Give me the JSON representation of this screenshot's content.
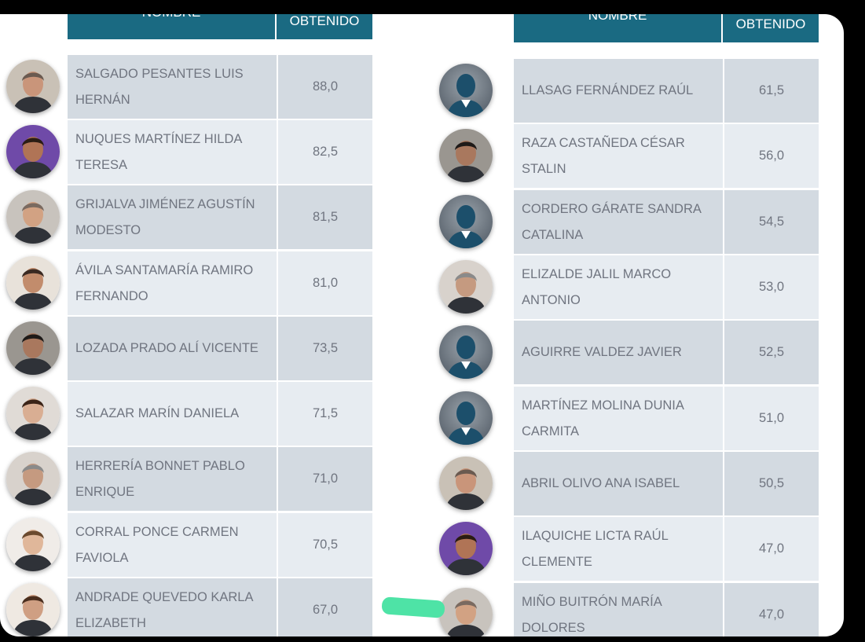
{
  "headers": {
    "name": "NOMBRE",
    "score": "OBTENIDO"
  },
  "left": [
    {
      "name": "SALGADO PESANTES LUIS HERNÁN",
      "score": "88,0",
      "avatar": "photo"
    },
    {
      "name": "NUQUES MARTÍNEZ HILDA TERESA",
      "score": "82,5",
      "avatar": "photo"
    },
    {
      "name": "GRIJALVA JIMÉNEZ AGUSTÍN MODESTO",
      "score": "81,5",
      "avatar": "photo"
    },
    {
      "name": "ÁVILA SANTAMARÍA RAMIRO FERNANDO",
      "score": "81,0",
      "avatar": "photo"
    },
    {
      "name": "LOZADA PRADO ALÍ VICENTE",
      "score": "73,5",
      "avatar": "photo"
    },
    {
      "name": "SALAZAR MARÍN DANIELA",
      "score": "71,5",
      "avatar": "photo"
    },
    {
      "name": "HERRERÍA BONNET PABLO ENRIQUE",
      "score": "71,0",
      "avatar": "photo"
    },
    {
      "name": "CORRAL PONCE CARMEN FAVIOLA",
      "score": "70,5",
      "avatar": "photo"
    },
    {
      "name": "ANDRADE QUEVEDO KARLA ELIZABETH",
      "score": "67,0",
      "avatar": "photo"
    }
  ],
  "right": [
    {
      "name": "LLASAG FERNÁNDEZ RAÚL",
      "score": "61,5",
      "avatar": "placeholder"
    },
    {
      "name": "RAZA CASTAÑEDA CÉSAR STALIN",
      "score": "56,0",
      "avatar": "photo"
    },
    {
      "name": "CORDERO GÁRATE SANDRA CATALINA",
      "score": "54,5",
      "avatar": "placeholder"
    },
    {
      "name": "ELIZALDE JALIL MARCO ANTONIO",
      "score": "53,0",
      "avatar": "photo"
    },
    {
      "name": "AGUIRRE VALDEZ JAVIER",
      "score": "52,5",
      "avatar": "placeholder"
    },
    {
      "name": "MARTÍNEZ MOLINA DUNIA CARMITA",
      "score": "51,0",
      "avatar": "placeholder"
    },
    {
      "name": "ABRIL OLIVO ANA ISABEL",
      "score": "50,5",
      "avatar": "photo"
    },
    {
      "name": "ILAQUICHE LICTA RAÚL CLEMENTE",
      "score": "47,0",
      "avatar": "photo"
    },
    {
      "name": "MIÑO BUITRÓN MARÍA DOLORES",
      "score": "47,0",
      "avatar": "photo"
    }
  ],
  "colors": {
    "header_bg": "#1a6a82",
    "row_dark": "#d3dae1",
    "row_light": "#e7ecf1",
    "text": "#707580",
    "highlight": "#4ee3a6"
  }
}
